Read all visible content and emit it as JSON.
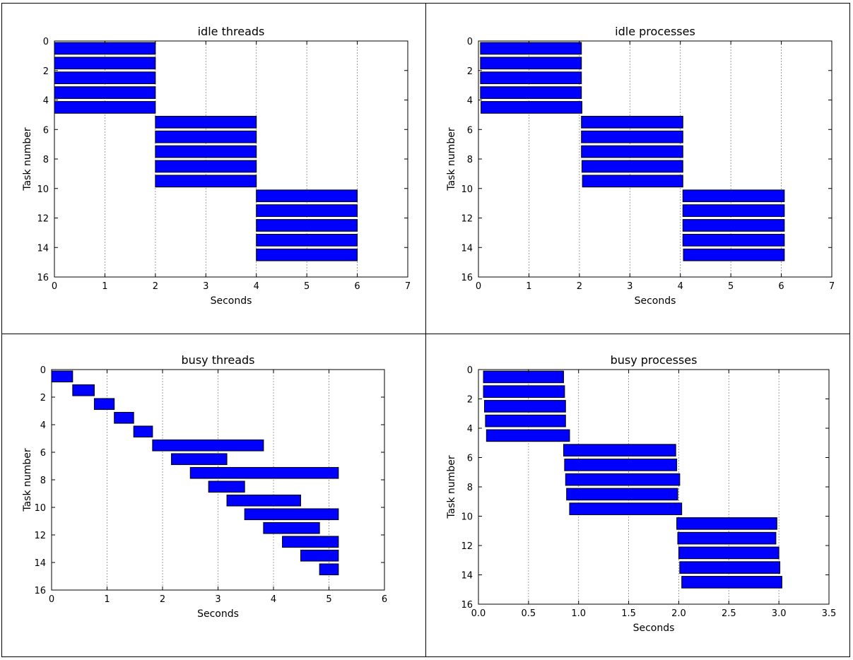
{
  "charts": [
    {
      "type": "bar",
      "title": "idle threads",
      "xlabel": "Seconds",
      "ylabel": "Task number",
      "xlim": [
        0,
        7
      ],
      "ylim": [
        16,
        0
      ],
      "xticks": [
        "0",
        "1",
        "2",
        "3",
        "4",
        "5",
        "6",
        "7"
      ],
      "yticks": [
        "0",
        "2",
        "4",
        "6",
        "8",
        "10",
        "12",
        "14",
        "16"
      ],
      "grid": "vertical dashed",
      "tasks": [
        {
          "task": 0,
          "start": 0.0,
          "end": 2.0
        },
        {
          "task": 1,
          "start": 0.0,
          "end": 2.0
        },
        {
          "task": 2,
          "start": 0.0,
          "end": 2.0
        },
        {
          "task": 3,
          "start": 0.0,
          "end": 2.0
        },
        {
          "task": 4,
          "start": 0.0,
          "end": 2.0
        },
        {
          "task": 5,
          "start": 2.0,
          "end": 4.0
        },
        {
          "task": 6,
          "start": 2.0,
          "end": 4.0
        },
        {
          "task": 7,
          "start": 2.0,
          "end": 4.0
        },
        {
          "task": 8,
          "start": 2.0,
          "end": 4.0
        },
        {
          "task": 9,
          "start": 2.0,
          "end": 4.0
        },
        {
          "task": 10,
          "start": 4.0,
          "end": 6.0
        },
        {
          "task": 11,
          "start": 4.0,
          "end": 6.0
        },
        {
          "task": 12,
          "start": 4.0,
          "end": 6.0
        },
        {
          "task": 13,
          "start": 4.0,
          "end": 6.0
        },
        {
          "task": 14,
          "start": 4.0,
          "end": 6.0
        }
      ]
    },
    {
      "type": "bar",
      "title": "idle processes",
      "xlabel": "Seconds",
      "ylabel": "Task number",
      "xlim": [
        0,
        7
      ],
      "ylim": [
        16,
        0
      ],
      "xticks": [
        "0",
        "1",
        "2",
        "3",
        "4",
        "5",
        "6",
        "7"
      ],
      "yticks": [
        "0",
        "2",
        "4",
        "6",
        "8",
        "10",
        "12",
        "14",
        "16"
      ],
      "grid": "vertical dashed",
      "tasks": [
        {
          "task": 0,
          "start": 0.04,
          "end": 2.04
        },
        {
          "task": 1,
          "start": 0.04,
          "end": 2.04
        },
        {
          "task": 2,
          "start": 0.04,
          "end": 2.04
        },
        {
          "task": 3,
          "start": 0.04,
          "end": 2.04
        },
        {
          "task": 4,
          "start": 0.05,
          "end": 2.05
        },
        {
          "task": 5,
          "start": 2.04,
          "end": 4.05
        },
        {
          "task": 6,
          "start": 2.04,
          "end": 4.05
        },
        {
          "task": 7,
          "start": 2.04,
          "end": 4.05
        },
        {
          "task": 8,
          "start": 2.05,
          "end": 4.05
        },
        {
          "task": 9,
          "start": 2.06,
          "end": 4.05
        },
        {
          "task": 10,
          "start": 4.05,
          "end": 6.06
        },
        {
          "task": 11,
          "start": 4.05,
          "end": 6.06
        },
        {
          "task": 12,
          "start": 4.05,
          "end": 6.06
        },
        {
          "task": 13,
          "start": 4.05,
          "end": 6.06
        },
        {
          "task": 14,
          "start": 4.06,
          "end": 6.06
        }
      ]
    },
    {
      "type": "bar",
      "title": "busy threads",
      "xlabel": "Seconds",
      "ylabel": "Task number",
      "xlim": [
        0,
        6
      ],
      "ylim": [
        16,
        0
      ],
      "xticks": [
        "0",
        "1",
        "2",
        "3",
        "4",
        "5",
        "6"
      ],
      "yticks": [
        "0",
        "2",
        "4",
        "6",
        "8",
        "10",
        "12",
        "14",
        "16"
      ],
      "grid": "vertical dashed",
      "tasks": [
        {
          "task": 0,
          "start": 0.0,
          "end": 0.38
        },
        {
          "task": 1,
          "start": 0.38,
          "end": 0.77
        },
        {
          "task": 2,
          "start": 0.77,
          "end": 1.13
        },
        {
          "task": 3,
          "start": 1.13,
          "end": 1.48
        },
        {
          "task": 4,
          "start": 1.48,
          "end": 1.82
        },
        {
          "task": 5,
          "start": 1.82,
          "end": 3.82
        },
        {
          "task": 6,
          "start": 2.16,
          "end": 3.16
        },
        {
          "task": 7,
          "start": 2.5,
          "end": 5.17
        },
        {
          "task": 8,
          "start": 2.83,
          "end": 3.48
        },
        {
          "task": 9,
          "start": 3.16,
          "end": 4.49
        },
        {
          "task": 10,
          "start": 3.48,
          "end": 5.17
        },
        {
          "task": 11,
          "start": 3.82,
          "end": 4.83
        },
        {
          "task": 12,
          "start": 4.16,
          "end": 5.17
        },
        {
          "task": 13,
          "start": 4.49,
          "end": 5.17
        },
        {
          "task": 14,
          "start": 4.83,
          "end": 5.17
        }
      ]
    },
    {
      "type": "bar",
      "title": "busy processes",
      "xlabel": "Seconds",
      "ylabel": "Task number",
      "xlim": [
        0,
        3.5
      ],
      "ylim": [
        16,
        0
      ],
      "xticks": [
        "0.0",
        "0.5",
        "1.0",
        "1.5",
        "2.0",
        "2.5",
        "3.0",
        "3.5"
      ],
      "yticks": [
        "0",
        "2",
        "4",
        "6",
        "8",
        "10",
        "12",
        "14",
        "16"
      ],
      "grid": "vertical dashed",
      "tasks": [
        {
          "task": 0,
          "start": 0.05,
          "end": 0.85
        },
        {
          "task": 1,
          "start": 0.05,
          "end": 0.86
        },
        {
          "task": 2,
          "start": 0.06,
          "end": 0.87
        },
        {
          "task": 3,
          "start": 0.07,
          "end": 0.87
        },
        {
          "task": 4,
          "start": 0.08,
          "end": 0.91
        },
        {
          "task": 5,
          "start": 0.85,
          "end": 1.97
        },
        {
          "task": 6,
          "start": 0.86,
          "end": 1.98
        },
        {
          "task": 7,
          "start": 0.87,
          "end": 2.01
        },
        {
          "task": 8,
          "start": 0.88,
          "end": 1.99
        },
        {
          "task": 9,
          "start": 0.91,
          "end": 2.03
        },
        {
          "task": 10,
          "start": 1.98,
          "end": 2.98
        },
        {
          "task": 11,
          "start": 1.99,
          "end": 2.97
        },
        {
          "task": 12,
          "start": 2.0,
          "end": 3.0
        },
        {
          "task": 13,
          "start": 2.01,
          "end": 3.01
        },
        {
          "task": 14,
          "start": 2.03,
          "end": 3.03
        }
      ]
    }
  ],
  "colors": {
    "bar_fill": "#0000ff",
    "bar_edge": "#000000",
    "grid": "#888888"
  }
}
